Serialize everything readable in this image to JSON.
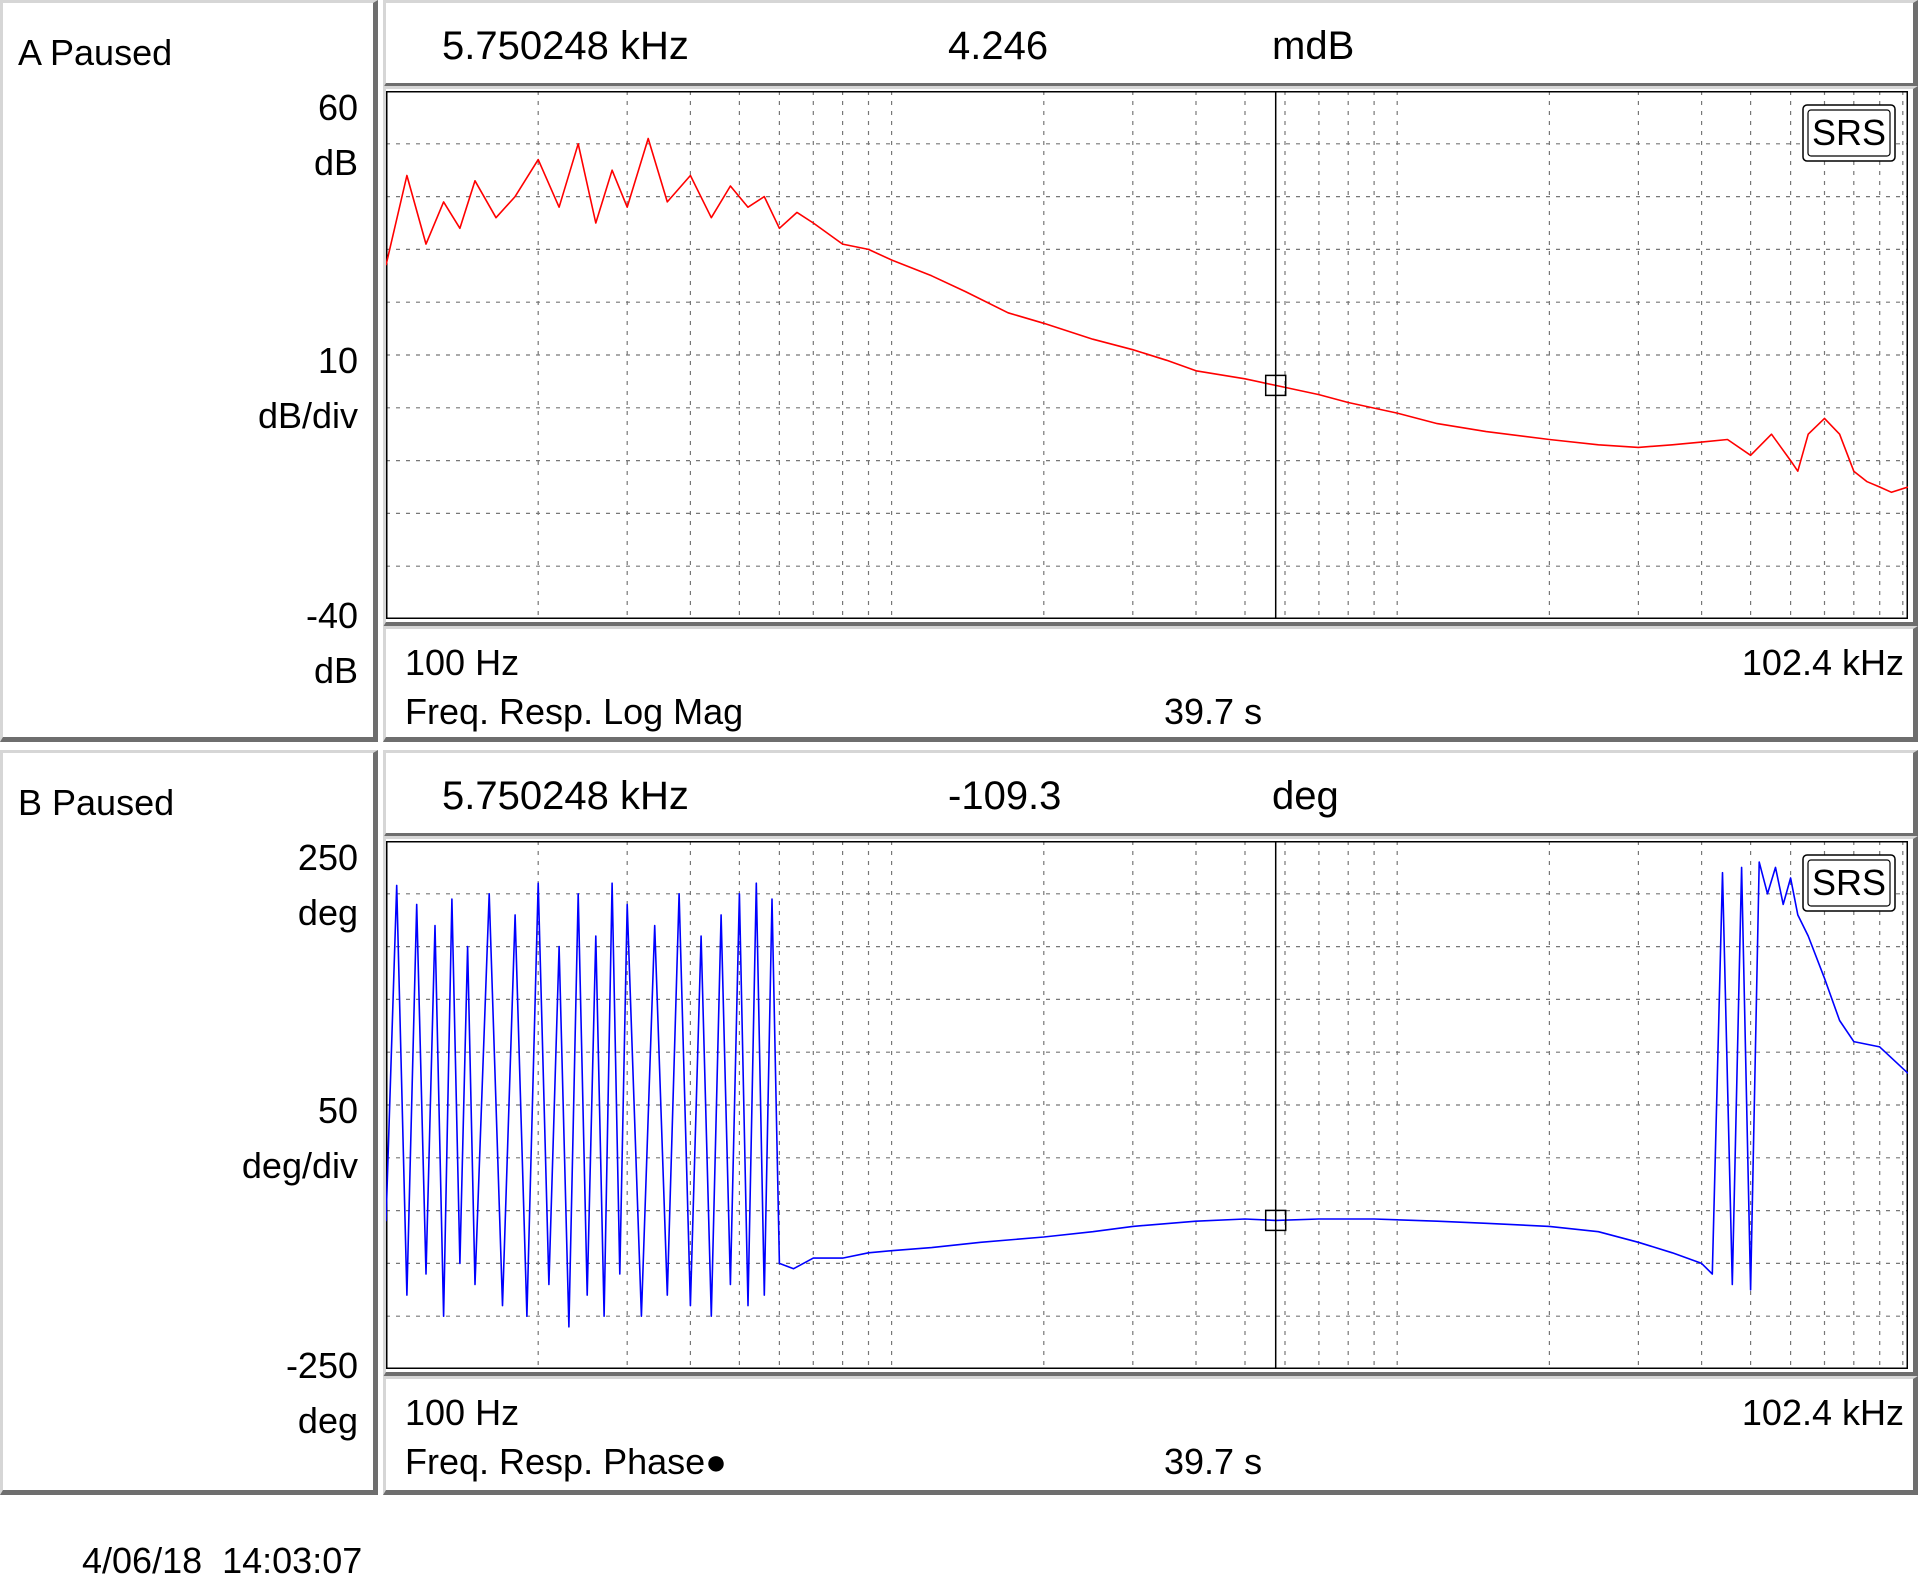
{
  "colors": {
    "trace_a": "#ff0000",
    "trace_b": "#0000ff",
    "grid": "#777777",
    "frame_light": "#d6d6d6",
    "frame_dark": "#6e6e6e"
  },
  "icons": {
    "logo": "srs-logo",
    "marker": "cursor-marker-square"
  },
  "panels": [
    {
      "status": "A Paused",
      "readout": {
        "freq": "5.750248 kHz",
        "value": "4.246",
        "unit": "mdB"
      },
      "y_top": "60",
      "y_top_unit": "dB",
      "y_mid": "10",
      "y_mid_unit": "dB/div",
      "y_bot": "-40",
      "y_bot_unit": "dB",
      "x_start": "100 Hz",
      "x_end": "102.4 kHz",
      "measurement": "Freq. Resp. Log Mag",
      "time": "39.7 s",
      "logo": "SRS"
    },
    {
      "status": "B Paused",
      "readout": {
        "freq": "5.750248 kHz",
        "value": "-109.3",
        "unit": "deg"
      },
      "y_top": "250",
      "y_top_unit": "deg",
      "y_mid": "50",
      "y_mid_unit": "deg/div",
      "y_bot": "-250",
      "y_bot_unit": "deg",
      "x_start": "100 Hz",
      "x_end": "102.4 kHz",
      "measurement": "Freq. Resp. Phase●",
      "time": "39.7 s",
      "logo": "SRS"
    }
  ],
  "footer": {
    "timestamp": "4/06/18  14:03:07"
  },
  "chart_data": [
    {
      "type": "line",
      "title": "Freq. Resp. Log Mag",
      "xlabel": "",
      "ylabel": "dB",
      "xscale": "log",
      "xlim": [
        100,
        102400
      ],
      "ylim": [
        -40,
        60
      ],
      "grid": true,
      "cursor": {
        "x": 5750.248,
        "y": 4.246
      },
      "series": [
        {
          "x": [
            100,
            110,
            120,
            130,
            140,
            150,
            165,
            180,
            200,
            220,
            240,
            260,
            280,
            300,
            330,
            360,
            400,
            440,
            480,
            520,
            560,
            600,
            650,
            700,
            800,
            900,
            1000,
            1200,
            1400,
            1700,
            2000,
            2500,
            3000,
            3500,
            4000,
            5000,
            5750,
            7000,
            8000,
            10000,
            12000,
            15000,
            20000,
            25000,
            30000,
            35000,
            40000,
            45000,
            50000,
            55000,
            60000,
            62000,
            65000,
            70000,
            75000,
            80000,
            85000,
            90000,
            95000,
            102400
          ],
          "y": [
            27,
            44,
            31,
            39,
            34,
            43,
            36,
            40,
            47,
            38,
            50,
            35,
            45,
            38,
            51,
            39,
            44,
            36,
            42,
            38,
            40,
            34,
            37,
            35,
            31,
            30,
            28,
            25,
            22,
            18,
            16,
            13,
            11,
            9,
            7,
            5.5,
            4.246,
            2.5,
            1,
            -1,
            -3,
            -4.5,
            -6,
            -7,
            -7.5,
            -7,
            -6.5,
            -6,
            -9,
            -5,
            -10,
            -12,
            -5,
            -2,
            -5,
            -12,
            -14,
            -15,
            -16,
            -15
          ]
        }
      ]
    },
    {
      "type": "line",
      "title": "Freq. Resp. Phase●",
      "xlabel": "",
      "ylabel": "deg",
      "xscale": "log",
      "xlim": [
        100,
        102400
      ],
      "ylim": [
        -250,
        250
      ],
      "grid": true,
      "cursor": {
        "x": 5750.248,
        "y": -109.3
      },
      "series": [
        {
          "x": [
            100,
            105,
            110,
            115,
            120,
            125,
            130,
            135,
            140,
            145,
            150,
            160,
            170,
            180,
            190,
            200,
            210,
            220,
            230,
            240,
            250,
            260,
            270,
            280,
            290,
            300,
            320,
            340,
            360,
            380,
            400,
            420,
            440,
            460,
            480,
            500,
            520,
            540,
            560,
            580,
            600,
            640,
            700,
            800,
            900,
            1000,
            1200,
            1500,
            2000,
            2500,
            3000,
            4000,
            5000,
            5750,
            7000,
            9000,
            12000,
            15000,
            20000,
            25000,
            30000,
            35000,
            40000,
            42000,
            44000,
            46000,
            48000,
            50000,
            52000,
            54000,
            56000,
            58000,
            60000,
            62000,
            65000,
            70000,
            75000,
            80000,
            90000,
            102400
          ],
          "y": [
            -110,
            208,
            -180,
            190,
            -160,
            170,
            -200,
            195,
            -150,
            150,
            -170,
            200,
            -190,
            180,
            -200,
            210,
            -170,
            150,
            -210,
            200,
            -180,
            160,
            -200,
            210,
            -160,
            190,
            -200,
            170,
            -180,
            200,
            -190,
            160,
            -200,
            180,
            -170,
            200,
            -190,
            210,
            -180,
            195,
            -150,
            -155,
            -145,
            -145,
            -140,
            -138,
            -135,
            -130,
            -125,
            -120,
            -115,
            -110,
            -108,
            -109.3,
            -108,
            -108,
            -110,
            -112,
            -115,
            -120,
            -130,
            -140,
            -150,
            -160,
            220,
            -170,
            225,
            -175,
            230,
            200,
            225,
            190,
            215,
            180,
            160,
            120,
            80,
            60,
            55,
            30
          ]
        }
      ]
    }
  ]
}
